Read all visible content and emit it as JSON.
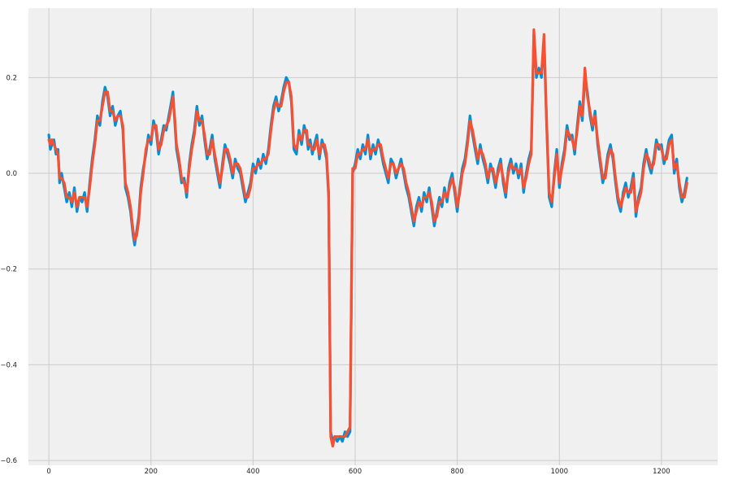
{
  "chart_data": {
    "type": "line",
    "title": "",
    "xlabel": "",
    "ylabel": "",
    "xlim": [
      -40,
      1310
    ],
    "ylim": [
      -0.61,
      0.345
    ],
    "grid": true,
    "legend": "none",
    "x_ticks": [
      0,
      200,
      400,
      600,
      800,
      1000,
      1200
    ],
    "x_tick_labels": [
      "0",
      "200",
      "400",
      "600",
      "800",
      "1000",
      "1200"
    ],
    "y_ticks": [
      0.2,
      0.0,
      -0.2,
      -0.4,
      -0.6
    ],
    "y_tick_labels": [
      "0.2",
      "0.0",
      "−0.2",
      "−0.4",
      "−0.6"
    ],
    "colors": {
      "plot_bg": "#f0f0f0",
      "grid": "#cbcbcb",
      "series1": "#008fd5",
      "series2": "#fc4f30"
    },
    "series": [
      {
        "x": [
          0,
          3,
          6,
          10,
          14,
          18,
          21,
          25,
          30,
          35,
          40,
          45,
          50,
          55,
          60,
          65,
          70,
          75,
          80,
          85,
          90,
          95,
          100,
          105,
          110,
          115,
          120,
          125,
          130,
          135,
          140,
          145,
          150,
          155,
          160,
          165,
          168,
          172,
          176,
          180,
          185,
          190,
          195,
          200,
          205,
          210,
          215,
          220,
          225,
          230,
          235,
          240,
          243,
          247,
          250,
          255,
          260,
          265,
          270,
          275,
          280,
          285,
          290,
          295,
          300,
          305,
          310,
          315,
          320,
          325,
          330,
          335,
          340,
          345,
          350,
          355,
          360,
          365,
          370,
          375,
          380,
          385,
          390,
          395,
          400,
          405,
          410,
          415,
          420,
          425,
          430,
          435,
          440,
          445,
          450,
          455,
          460,
          465,
          470,
          475,
          480,
          485,
          490,
          495,
          500,
          505,
          508,
          512,
          516,
          520,
          525,
          530,
          535,
          540,
          544,
          548,
          552,
          556,
          560,
          565,
          570,
          575,
          580,
          585,
          590,
          595,
          600,
          605,
          610,
          615,
          620,
          625,
          630,
          635,
          640,
          645,
          650,
          655,
          660,
          665,
          670,
          675,
          680,
          685,
          690,
          695,
          700,
          705,
          710,
          715,
          720,
          725,
          730,
          735,
          740,
          745,
          750,
          755,
          760,
          765,
          770,
          775,
          780,
          785,
          790,
          795,
          800,
          805,
          810,
          815,
          820,
          825,
          830,
          835,
          840,
          845,
          850,
          855,
          860,
          865,
          870,
          875,
          880,
          885,
          890,
          895,
          900,
          905,
          910,
          915,
          920,
          925,
          930,
          935,
          940,
          945,
          950,
          955,
          960,
          965,
          970,
          975,
          980,
          985,
          990,
          995,
          1000,
          1005,
          1010,
          1015,
          1020,
          1025,
          1030,
          1035,
          1040,
          1045,
          1050,
          1055,
          1060,
          1065,
          1070,
          1075,
          1080,
          1085,
          1090,
          1095,
          1100,
          1105,
          1110,
          1115,
          1120,
          1125,
          1130,
          1135,
          1140,
          1145,
          1150,
          1155,
          1160,
          1165,
          1170,
          1175,
          1180,
          1185,
          1190,
          1195,
          1200,
          1205,
          1210,
          1215,
          1220,
          1225,
          1230,
          1235,
          1240,
          1245,
          1250
        ],
        "values": [
          0.08,
          0.05,
          0.06,
          0.07,
          0.04,
          0.05,
          -0.02,
          0.0,
          -0.03,
          -0.06,
          -0.04,
          -0.07,
          -0.03,
          -0.08,
          -0.05,
          -0.06,
          -0.04,
          -0.08,
          -0.02,
          0.03,
          0.07,
          0.12,
          0.1,
          0.15,
          0.18,
          0.16,
          0.12,
          0.14,
          0.1,
          0.12,
          0.13,
          0.09,
          -0.03,
          -0.05,
          -0.08,
          -0.13,
          -0.15,
          -0.12,
          -0.09,
          -0.03,
          0.01,
          0.04,
          0.08,
          0.06,
          0.11,
          0.09,
          0.04,
          0.07,
          0.1,
          0.09,
          0.12,
          0.15,
          0.17,
          0.1,
          0.05,
          0.02,
          -0.02,
          -0.01,
          -0.05,
          0.02,
          0.06,
          0.09,
          0.14,
          0.1,
          0.12,
          0.07,
          0.03,
          0.05,
          0.08,
          0.03,
          0.0,
          -0.03,
          0.02,
          0.06,
          0.04,
          0.02,
          -0.01,
          0.03,
          0.01,
          0.0,
          -0.03,
          -0.06,
          -0.04,
          -0.02,
          0.02,
          0.0,
          0.03,
          0.01,
          0.04,
          0.02,
          0.05,
          0.1,
          0.14,
          0.16,
          0.13,
          0.15,
          0.18,
          0.2,
          0.19,
          0.15,
          0.05,
          0.04,
          0.09,
          0.06,
          0.1,
          0.08,
          0.05,
          0.07,
          0.04,
          0.06,
          0.08,
          0.03,
          0.07,
          0.05,
          0.03,
          -0.05,
          -0.54,
          -0.56,
          -0.55,
          -0.56,
          -0.55,
          -0.56,
          -0.54,
          -0.55,
          -0.54,
          0.0,
          0.02,
          0.05,
          0.03,
          0.06,
          0.04,
          0.08,
          0.03,
          0.06,
          0.04,
          0.07,
          0.05,
          0.02,
          0.0,
          -0.02,
          0.03,
          0.02,
          -0.01,
          0.01,
          0.03,
          0.0,
          -0.03,
          -0.05,
          -0.08,
          -0.11,
          -0.07,
          -0.05,
          -0.08,
          -0.04,
          -0.06,
          -0.03,
          -0.07,
          -0.11,
          -0.08,
          -0.05,
          -0.07,
          -0.03,
          -0.06,
          -0.02,
          0.0,
          -0.04,
          -0.08,
          -0.03,
          0.01,
          0.03,
          0.07,
          0.12,
          0.08,
          0.05,
          0.02,
          0.06,
          0.03,
          0.01,
          -0.02,
          0.02,
          0.0,
          -0.03,
          0.01,
          0.03,
          -0.02,
          -0.05,
          0.01,
          0.03,
          0.0,
          0.02,
          -0.01,
          0.02,
          -0.04,
          0.0,
          0.03,
          0.05,
          0.29,
          0.2,
          0.22,
          0.2,
          0.28,
          0.1,
          -0.05,
          -0.07,
          0.0,
          0.05,
          -0.03,
          0.02,
          0.05,
          0.1,
          0.07,
          0.08,
          0.04,
          0.1,
          0.15,
          0.11,
          0.2,
          0.17,
          0.12,
          0.09,
          0.13,
          0.06,
          0.02,
          -0.02,
          0.0,
          0.04,
          0.06,
          0.03,
          -0.02,
          -0.06,
          -0.08,
          -0.04,
          -0.02,
          -0.05,
          -0.03,
          0.0,
          -0.09,
          -0.05,
          -0.03,
          0.02,
          0.05,
          0.02,
          0.0,
          0.03,
          0.07,
          0.05,
          0.06,
          0.02,
          0.04,
          0.07,
          0.08,
          0.0,
          0.03,
          -0.03,
          -0.06,
          -0.04,
          -0.01
        ],
        "note_": ""
      },
      {
        "x": [
          0,
          3,
          6,
          10,
          14,
          18,
          21,
          25,
          30,
          35,
          40,
          45,
          50,
          55,
          60,
          65,
          70,
          75,
          80,
          85,
          90,
          95,
          100,
          105,
          110,
          115,
          120,
          125,
          130,
          135,
          140,
          145,
          150,
          155,
          160,
          165,
          168,
          172,
          176,
          180,
          185,
          190,
          195,
          200,
          205,
          210,
          215,
          220,
          225,
          230,
          235,
          240,
          243,
          247,
          250,
          255,
          260,
          265,
          270,
          275,
          280,
          285,
          290,
          295,
          300,
          305,
          310,
          315,
          320,
          325,
          330,
          335,
          340,
          345,
          350,
          355,
          360,
          365,
          370,
          375,
          380,
          385,
          390,
          395,
          400,
          405,
          410,
          415,
          420,
          425,
          430,
          435,
          440,
          445,
          450,
          455,
          460,
          465,
          470,
          475,
          480,
          485,
          490,
          495,
          500,
          505,
          508,
          512,
          516,
          520,
          525,
          530,
          535,
          540,
          544,
          548,
          552,
          556,
          560,
          565,
          570,
          575,
          580,
          585,
          590,
          595,
          600,
          605,
          610,
          615,
          620,
          625,
          630,
          635,
          640,
          645,
          650,
          655,
          660,
          665,
          670,
          675,
          680,
          685,
          690,
          695,
          700,
          705,
          710,
          715,
          720,
          725,
          730,
          735,
          740,
          745,
          750,
          755,
          760,
          765,
          770,
          775,
          780,
          785,
          790,
          795,
          800,
          805,
          810,
          815,
          820,
          825,
          830,
          835,
          840,
          845,
          850,
          855,
          860,
          865,
          870,
          875,
          880,
          885,
          890,
          895,
          900,
          905,
          910,
          915,
          920,
          925,
          930,
          935,
          940,
          945,
          950,
          955,
          960,
          965,
          970,
          975,
          980,
          985,
          990,
          995,
          1000,
          1005,
          1010,
          1015,
          1020,
          1025,
          1030,
          1035,
          1040,
          1045,
          1050,
          1055,
          1060,
          1065,
          1070,
          1075,
          1080,
          1085,
          1090,
          1095,
          1100,
          1105,
          1110,
          1115,
          1120,
          1125,
          1130,
          1135,
          1140,
          1145,
          1150,
          1155,
          1160,
          1165,
          1170,
          1175,
          1180,
          1185,
          1190,
          1195,
          1200,
          1205,
          1210,
          1215,
          1220,
          1225,
          1230,
          1235,
          1240,
          1245,
          1250
        ],
        "values": [
          0.07,
          0.06,
          0.07,
          0.06,
          0.05,
          0.04,
          -0.01,
          -0.01,
          -0.02,
          -0.05,
          -0.05,
          -0.06,
          -0.04,
          -0.07,
          -0.05,
          -0.05,
          -0.05,
          -0.07,
          -0.03,
          0.02,
          0.06,
          0.11,
          0.11,
          0.14,
          0.17,
          0.17,
          0.13,
          0.13,
          0.11,
          0.12,
          0.12,
          0.1,
          -0.02,
          -0.04,
          -0.07,
          -0.12,
          -0.14,
          -0.13,
          -0.1,
          -0.04,
          0.0,
          0.05,
          0.07,
          0.07,
          0.1,
          0.1,
          0.05,
          0.06,
          0.09,
          0.1,
          0.11,
          0.14,
          0.16,
          0.11,
          0.06,
          0.03,
          -0.01,
          -0.02,
          -0.04,
          0.01,
          0.05,
          0.08,
          0.13,
          0.11,
          0.11,
          0.08,
          0.04,
          0.04,
          0.07,
          0.04,
          0.01,
          -0.02,
          0.01,
          0.05,
          0.05,
          0.03,
          0.0,
          0.02,
          0.02,
          0.01,
          -0.02,
          -0.05,
          -0.05,
          -0.03,
          0.01,
          0.01,
          0.02,
          0.02,
          0.03,
          0.03,
          0.04,
          0.09,
          0.13,
          0.15,
          0.14,
          0.14,
          0.17,
          0.19,
          0.19,
          0.16,
          0.06,
          0.05,
          0.08,
          0.07,
          0.09,
          0.09,
          0.06,
          0.06,
          0.05,
          0.05,
          0.07,
          0.04,
          0.06,
          0.06,
          0.04,
          -0.04,
          -0.55,
          -0.57,
          -0.55,
          -0.55,
          -0.55,
          -0.55,
          -0.55,
          -0.54,
          -0.53,
          0.01,
          0.01,
          0.04,
          0.04,
          0.05,
          0.05,
          0.07,
          0.04,
          0.05,
          0.05,
          0.06,
          0.06,
          0.03,
          0.01,
          -0.01,
          0.02,
          0.02,
          0.0,
          0.01,
          0.02,
          0.01,
          -0.02,
          -0.04,
          -0.07,
          -0.1,
          -0.08,
          -0.06,
          -0.07,
          -0.05,
          -0.05,
          -0.04,
          -0.06,
          -0.1,
          -0.09,
          -0.06,
          -0.06,
          -0.04,
          -0.05,
          -0.03,
          -0.01,
          -0.03,
          -0.07,
          -0.04,
          0.0,
          0.02,
          0.06,
          0.11,
          0.09,
          0.06,
          0.03,
          0.05,
          0.04,
          0.02,
          -0.01,
          0.01,
          0.01,
          -0.02,
          0.0,
          0.02,
          -0.01,
          -0.04,
          0.0,
          0.02,
          0.01,
          0.01,
          0.0,
          0.01,
          -0.03,
          -0.01,
          0.02,
          0.04,
          0.3,
          0.21,
          0.21,
          0.21,
          0.29,
          0.11,
          -0.04,
          -0.06,
          -0.01,
          0.04,
          -0.02,
          0.01,
          0.04,
          0.09,
          0.08,
          0.07,
          0.05,
          0.09,
          0.14,
          0.12,
          0.22,
          0.16,
          0.13,
          0.1,
          0.12,
          0.07,
          0.03,
          -0.01,
          -0.01,
          0.03,
          0.05,
          0.04,
          -0.01,
          -0.05,
          -0.07,
          -0.05,
          -0.03,
          -0.04,
          -0.04,
          -0.01,
          -0.08,
          -0.06,
          -0.04,
          0.01,
          0.04,
          0.03,
          0.01,
          0.02,
          0.06,
          0.06,
          0.05,
          0.03,
          0.03,
          0.06,
          0.07,
          0.01,
          0.02,
          -0.02,
          -0.05,
          -0.05,
          -0.02
        ],
        "note_": ""
      }
    ]
  }
}
